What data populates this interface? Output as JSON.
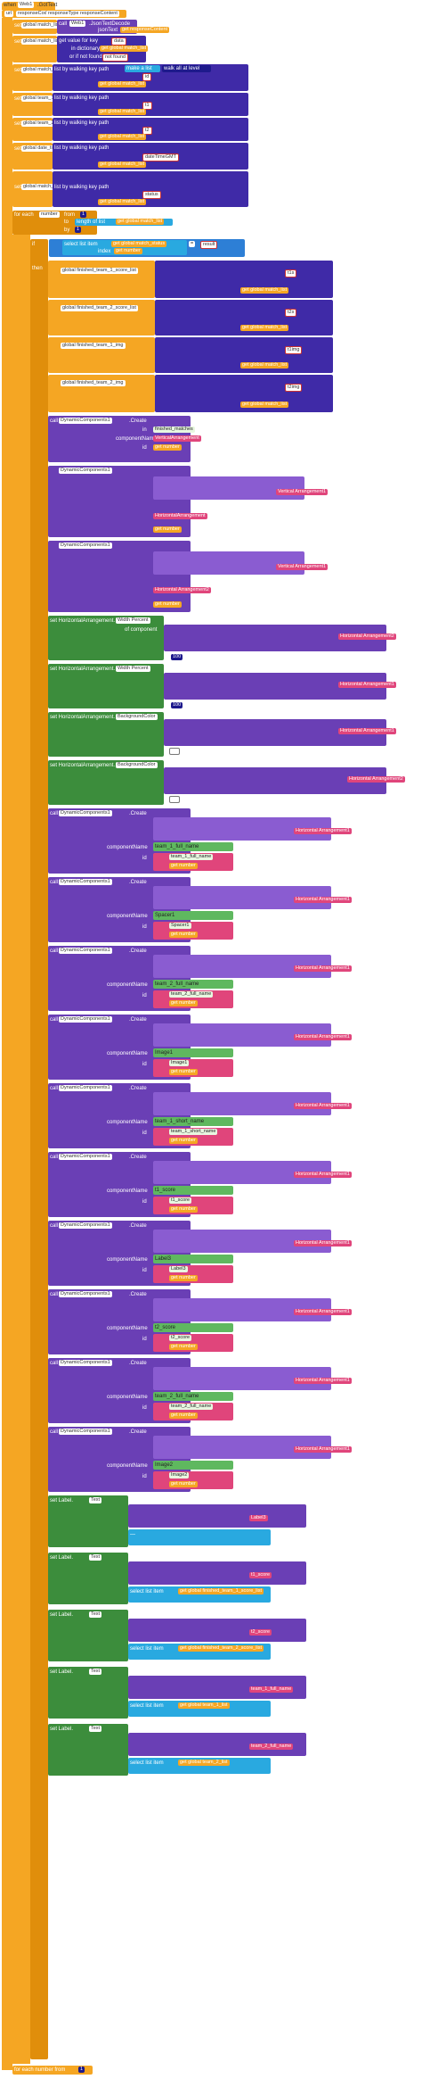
{
  "event": {
    "header": "when",
    "component": "Web1",
    "event_name": ".GotText",
    "params": [
      "url",
      "responseCode",
      "responseType",
      "responseContent"
    ]
  },
  "init_globals": [
    {
      "label": "set",
      "var": "global match_list",
      "to": "to",
      "call": "call",
      "component": "Web1",
      "method": ".JsonTextDecode",
      "param": "jsonText",
      "value": "get responseContent"
    },
    {
      "label": "set",
      "var": "global match_list",
      "to": "to",
      "get_value": "get value for key",
      "key": "data",
      "dict_label": "in dictionary",
      "dict_value": "get global match_list",
      "notfound_label": "or if not found",
      "notfound": "not found"
    },
    {
      "label": "set",
      "var": "global match_id",
      "to": "to",
      "walk": "list by walking key path",
      "make_list": "make a list",
      "walk_all": "walk all at level",
      "index": "1",
      "key": "id",
      "dict_value": "get global match_list",
      "not_found": "not found"
    },
    {
      "label": "set",
      "var": "global team_1_list",
      "to": "to",
      "walk": "list by walking key path",
      "make_list": "make a list",
      "walk_all": "walk all at level",
      "key": "t1",
      "dict_value": "get global match_list",
      "not_found": "not found"
    },
    {
      "label": "set",
      "var": "global team_2_list",
      "to": "to",
      "walk": "list by walking key path",
      "make_list": "make a list",
      "walk_all": "walk all at level",
      "key": "t2",
      "dict_value": "get global match_list",
      "not_found": "not found"
    },
    {
      "label": "set",
      "var": "global date_time",
      "to": "to",
      "walk": "list by walking key path",
      "make_list": "make a list",
      "walk_all": "walk all at level",
      "key": "dateTimeGMT",
      "dict_value": "get global match_list",
      "not_found": "not found"
    },
    {
      "label": "set",
      "var": "global match_status",
      "to": "to",
      "walk": "list by walking key path",
      "make_list": "make a list",
      "walk_all": "walk all at level",
      "key": "status",
      "dict_value": "get global match_list",
      "not_found": "not found"
    }
  ],
  "for_each": {
    "label": "for each",
    "var": "number",
    "from_label": "from",
    "from": "1",
    "to_label": "to",
    "length_label": "length of list",
    "list": "get global match_list",
    "by_label": "by",
    "by": "1",
    "do_label": "do"
  },
  "if_block": {
    "if_label": "if",
    "select": "select list item",
    "list": "get global match_status",
    "index_label": "index",
    "index": "get number",
    "compare": "=",
    "value": "result",
    "then_label": "then"
  },
  "then_sets": [
    {
      "var": "global finished_team_1_score_list",
      "key": "t1s",
      "dict_value": "get global match_list"
    },
    {
      "var": "global finished_team_2_score_list",
      "key": "t2s",
      "dict_value": "get global match_list"
    },
    {
      "var": "global finished_team_1_img",
      "key": "t1img",
      "dict_value": "get global match_list"
    },
    {
      "var": "global finished_team_2_img",
      "key": "t2img",
      "dict_value": "get global match_list"
    }
  ],
  "create_blocks": [
    {
      "call": "call",
      "component": "DynamicComponents1",
      "method": ".Create",
      "parent_label": "in",
      "parent": "finished_matches",
      "type_label": "componentName",
      "type": "VerticalArrangement",
      "id_label": "id",
      "id_value": "get number"
    },
    {
      "call": "call",
      "component": "DynamicComponents1",
      "method": ".Create",
      "parent": "Vertical Arrangement1",
      "type": "HorizontalArrangement",
      "id_value": "get number"
    },
    {
      "call": "call",
      "component": "DynamicComponents1",
      "method": ".Create",
      "parent": "Vertical Arrangement1",
      "type": "Horizontal Arrangement2",
      "id_value": "get number"
    }
  ],
  "width_sets": [
    {
      "label": "set HorizontalArrangement.",
      "prop": "Width Percent",
      "of": "of component",
      "comp": "Horizontal Arrangement2",
      "to": "100"
    },
    {
      "label": "set HorizontalArrangement.",
      "prop": "Width Percent",
      "of": "of component",
      "comp": "Horizontal Arrangement1",
      "to": "100"
    },
    {
      "label": "set HorizontalArrangement.",
      "prop": "BackgroundColor",
      "of": "of component",
      "comp": "Horizontal Arrangement1",
      "to": ""
    },
    {
      "label": "set HorizontalArrangement.",
      "prop": "BackgroundColor",
      "of": "of component",
      "comp": "Horizontal Arrangement2",
      "to": ""
    }
  ],
  "components": [
    {
      "name": "team_1_full_name",
      "type": "Text"
    },
    {
      "name": "Spacer1",
      "type": "Spacer"
    },
    {
      "name": "team_2_full_name",
      "type": "Text"
    },
    {
      "name": "Image1",
      "type": "Image"
    },
    {
      "name": "team_1_short_name",
      "type": "Text"
    },
    {
      "name": "t1_score",
      "type": "Text"
    },
    {
      "name": "Label3",
      "type": "Label"
    },
    {
      "name": "t2_score",
      "type": "Text"
    },
    {
      "name": "team_2_full_name",
      "type": "Text"
    },
    {
      "name": "Image2",
      "type": "Image"
    }
  ],
  "label_sets": [
    {
      "label": "set Label.",
      "prop": "Text of component",
      "comp": "Label3",
      "to": "—"
    },
    {
      "label": "set Label.",
      "prop": "Text of component",
      "comp": "t1_score",
      "to": "select list item",
      "list": "get global finished_team_1_score_list"
    },
    {
      "label": "set Label.",
      "prop": "Text of component",
      "comp": "t2_score",
      "to": "select list item",
      "list": "get global finished_team_2_score_list"
    },
    {
      "label": "set Label.",
      "prop": "Text of component",
      "comp": "team_1_full_name",
      "to": "select list item",
      "list": "get global team_1_list"
    },
    {
      "label": "set Label.",
      "prop": "Text of component",
      "comp": "team_2_full_name",
      "to": "select list item",
      "list": "get global team_2_list"
    }
  ],
  "footer": {
    "label": "for each number from",
    "value": "1"
  },
  "colors": {
    "event": "#F5A623",
    "set": "#F5A623",
    "dynamic": "#6A3FB5",
    "web": "#6A3FB5",
    "dictionary": "#3F2AA7",
    "list": "#29A9E0",
    "text": "#E0457B",
    "math": "#1E1A8C",
    "control": "#E08E0B",
    "property": "#3C8D3C"
  }
}
